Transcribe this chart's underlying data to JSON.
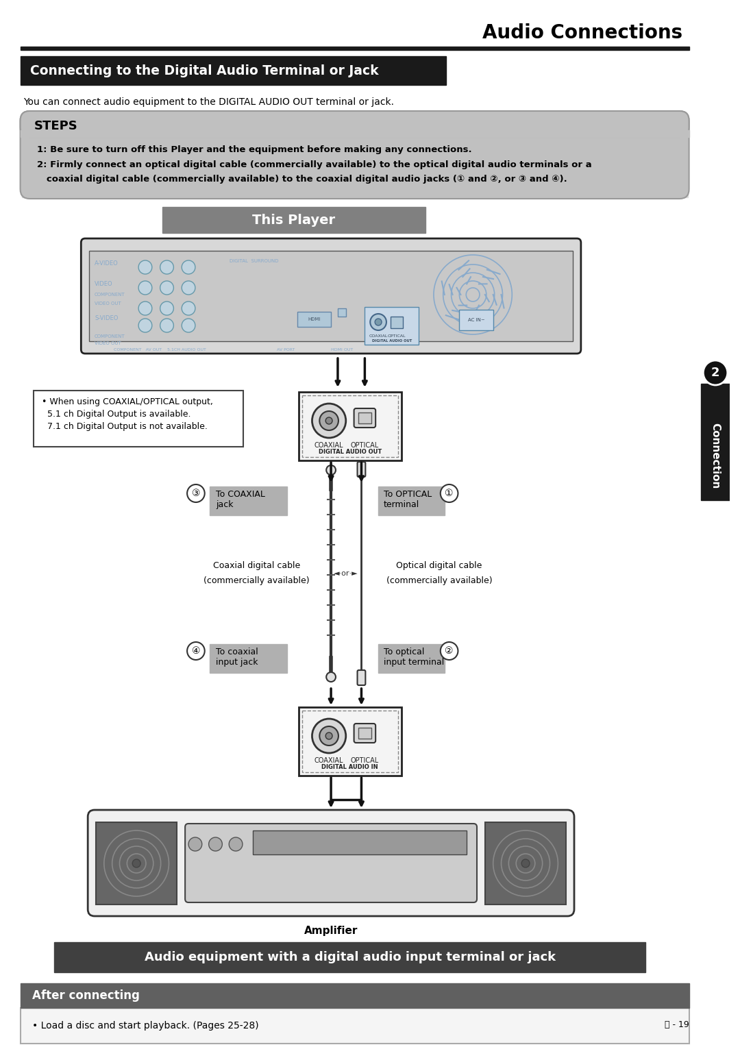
{
  "page_title": "Audio Connections",
  "section_title": "Connecting to the Digital Audio Terminal or Jack",
  "subtitle_text": "You can connect audio equipment to the DIGITAL AUDIO OUT terminal or jack.",
  "steps_title": "STEPS",
  "step1": "1: Be sure to turn off this Player and the equipment before making any connections.",
  "step2_line1": "2: Firmly connect an optical digital cable (commercially available) to the optical digital audio terminals or a",
  "step2_line2": "   coaxial digital cable (commercially available) to the coaxial digital audio jacks (① and ②, or ③ and ④).",
  "this_player_label": "This Player",
  "note_bullet": "• When using COAXIAL/OPTICAL output,\n  5.1 ch Digital Output is available.\n  7.1 ch Digital Output is not available.",
  "digital_audio_out_label": "DIGITAL AUDIO OUT",
  "digital_audio_in_label": "DIGITAL AUDIO IN",
  "coaxial_label": "COAXIAL",
  "optical_label": "OPTICAL",
  "label3": "To COAXIAL\njack",
  "label1": "To OPTICAL\nterminal",
  "num3": "③",
  "num1": "①",
  "coaxial_cable_label_line1": "Coaxial digital cable",
  "coaxial_cable_label_line2": "(commercially available)",
  "or_label": "◄·or·►",
  "optical_cable_label_line1": "Optical digital cable",
  "optical_cable_label_line2": "(commercially available)",
  "label4": "To coaxial\ninput jack",
  "label2": "To optical\ninput terminal",
  "num4": "④",
  "num2": "②",
  "amplifier_label": "Amplifier",
  "bottom_banner": "Audio equipment with a digital audio input terminal or jack",
  "after_title": "After connecting",
  "after_text": "• Load a disc and start playback. (Pages 25-28)",
  "page_number": "ⓔ - 19",
  "connection_label": "Connection",
  "bg_color": "#ffffff",
  "title_rule_color": "#1a1a1a",
  "section_header_bg": "#1a1a1a",
  "section_header_text": "#ffffff",
  "steps_bg": "#c0c0c0",
  "steps_content_bg": "#e8e8e8",
  "this_player_bg": "#808080",
  "this_player_text": "#ffffff",
  "bottom_banner_bg": "#404040",
  "bottom_banner_text": "#ffffff",
  "after_bg": "#606060",
  "after_header_text": "#ffffff",
  "label_bg": "#b0b0b0",
  "connector_box_bg": "#f0f0f0",
  "connector_box_border": "#1a1a1a",
  "line_color": "#1a1a1a",
  "right_tab_bg": "#1a1a1a",
  "right_tab_text": "#ffffff",
  "num_circle_border": "#333333",
  "player_body_bg": "#d8d8d8",
  "player_body_border": "#222222",
  "fan_color": "#88aacc",
  "connector_detail_color": "#aabbcc",
  "amp_border": "#333333",
  "amp_bg": "#f0f0f0",
  "speaker_bg": "#666666",
  "speaker_border": "#444444"
}
